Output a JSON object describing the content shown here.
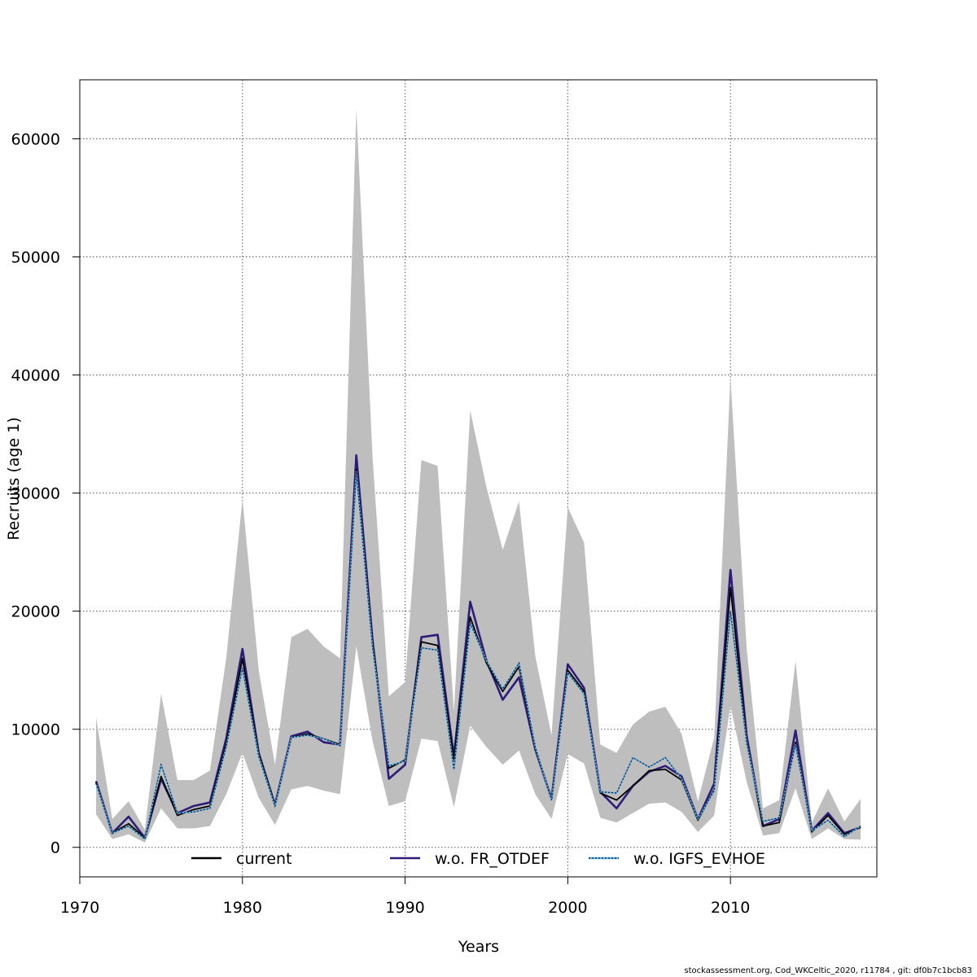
{
  "chart_data": {
    "type": "line",
    "title": "",
    "xlabel": "Years",
    "ylabel": "Recruits (age 1)",
    "xlim": [
      1970,
      2019
    ],
    "ylim": [
      -2500,
      65000
    ],
    "xticks": [
      1970,
      1980,
      1990,
      2000,
      2010
    ],
    "yticks": [
      0,
      10000,
      20000,
      30000,
      40000,
      50000,
      60000
    ],
    "grid": true,
    "legend_position": "bottom",
    "x": [
      1971,
      1972,
      1973,
      1974,
      1975,
      1976,
      1977,
      1978,
      1979,
      1980,
      1981,
      1982,
      1983,
      1984,
      1985,
      1986,
      1987,
      1988,
      1989,
      1990,
      1991,
      1992,
      1993,
      1994,
      1995,
      1996,
      1997,
      1998,
      1999,
      2000,
      2001,
      2002,
      2003,
      2004,
      2005,
      2006,
      2007,
      2008,
      2009,
      2010,
      2011,
      2012,
      2013,
      2014,
      2015,
      2016,
      2017,
      2018
    ],
    "band": {
      "color": "#bebebe",
      "lower": [
        2800,
        700,
        1100,
        400,
        3300,
        1600,
        1600,
        1800,
        4500,
        8000,
        4200,
        1900,
        4900,
        5200,
        4800,
        4500,
        17000,
        9000,
        3500,
        3900,
        9200,
        9000,
        3400,
        10300,
        8500,
        7000,
        8200,
        4500,
        2400,
        7900,
        7100,
        2500,
        2100,
        2900,
        3700,
        3800,
        3000,
        1300,
        2700,
        12000,
        5500,
        1000,
        1200,
        5000,
        700,
        1600,
        700,
        650
      ],
      "upper": [
        11000,
        2400,
        3900,
        1500,
        13000,
        5700,
        5700,
        6500,
        16000,
        29500,
        15000,
        7000,
        17800,
        18500,
        17000,
        16000,
        62500,
        33000,
        12800,
        14000,
        32800,
        32300,
        11500,
        37000,
        30500,
        25200,
        29300,
        16200,
        9500,
        28800,
        25800,
        8700,
        8000,
        10400,
        11500,
        11900,
        9600,
        3900,
        9300,
        39800,
        16800,
        3300,
        4000,
        15800,
        2100,
        5000,
        2200,
        4100
      ]
    },
    "series": [
      {
        "name": "current",
        "color": "#000000",
        "style": "solid",
        "values": [
          5500,
          1200,
          2000,
          800,
          6000,
          2700,
          3200,
          3500,
          8800,
          16000,
          7900,
          3600,
          9300,
          9600,
          9200,
          8700,
          32000,
          17300,
          6700,
          7400,
          17400,
          17100,
          7400,
          19500,
          15600,
          13200,
          15300,
          8400,
          4100,
          15000,
          13200,
          4600,
          4000,
          5200,
          6500,
          6600,
          5700,
          2300,
          4900,
          22000,
          9000,
          1800,
          2100,
          8900,
          1300,
          2700,
          1100,
          1700
        ]
      },
      {
        "name": "w.o. FR_OTDEF",
        "color": "#2f1b78",
        "style": "solid",
        "values": [
          5600,
          1200,
          2600,
          800,
          5800,
          2900,
          3500,
          3800,
          9200,
          16800,
          8000,
          3600,
          9400,
          9800,
          8900,
          8700,
          33200,
          17500,
          5800,
          7000,
          17800,
          18000,
          7700,
          20800,
          15800,
          12500,
          14400,
          8300,
          4100,
          15500,
          13500,
          4700,
          3300,
          5200,
          6400,
          6900,
          6000,
          2400,
          5400,
          23500,
          9400,
          1800,
          2400,
          9900,
          1400,
          2900,
          1200,
          1700
        ]
      },
      {
        "name": "w.o. IGFS_EVHOE",
        "color": "#56b4e9",
        "style": "dotted",
        "values": [
          5400,
          1200,
          1800,
          700,
          7000,
          2900,
          3000,
          3300,
          8500,
          15200,
          7700,
          3500,
          9300,
          9500,
          9200,
          8600,
          31800,
          16900,
          6900,
          7300,
          16900,
          16700,
          6600,
          19000,
          15800,
          13400,
          15600,
          8500,
          4000,
          14800,
          13000,
          4700,
          4600,
          7600,
          6800,
          7600,
          5800,
          2400,
          4800,
          20000,
          8800,
          2200,
          2500,
          8700,
          1400,
          2300,
          900,
          1800
        ]
      }
    ]
  },
  "footer_text": "stockassessment.org, Cod_WKCeltic_2020, r11784 , git: df0b7c1bcb83"
}
